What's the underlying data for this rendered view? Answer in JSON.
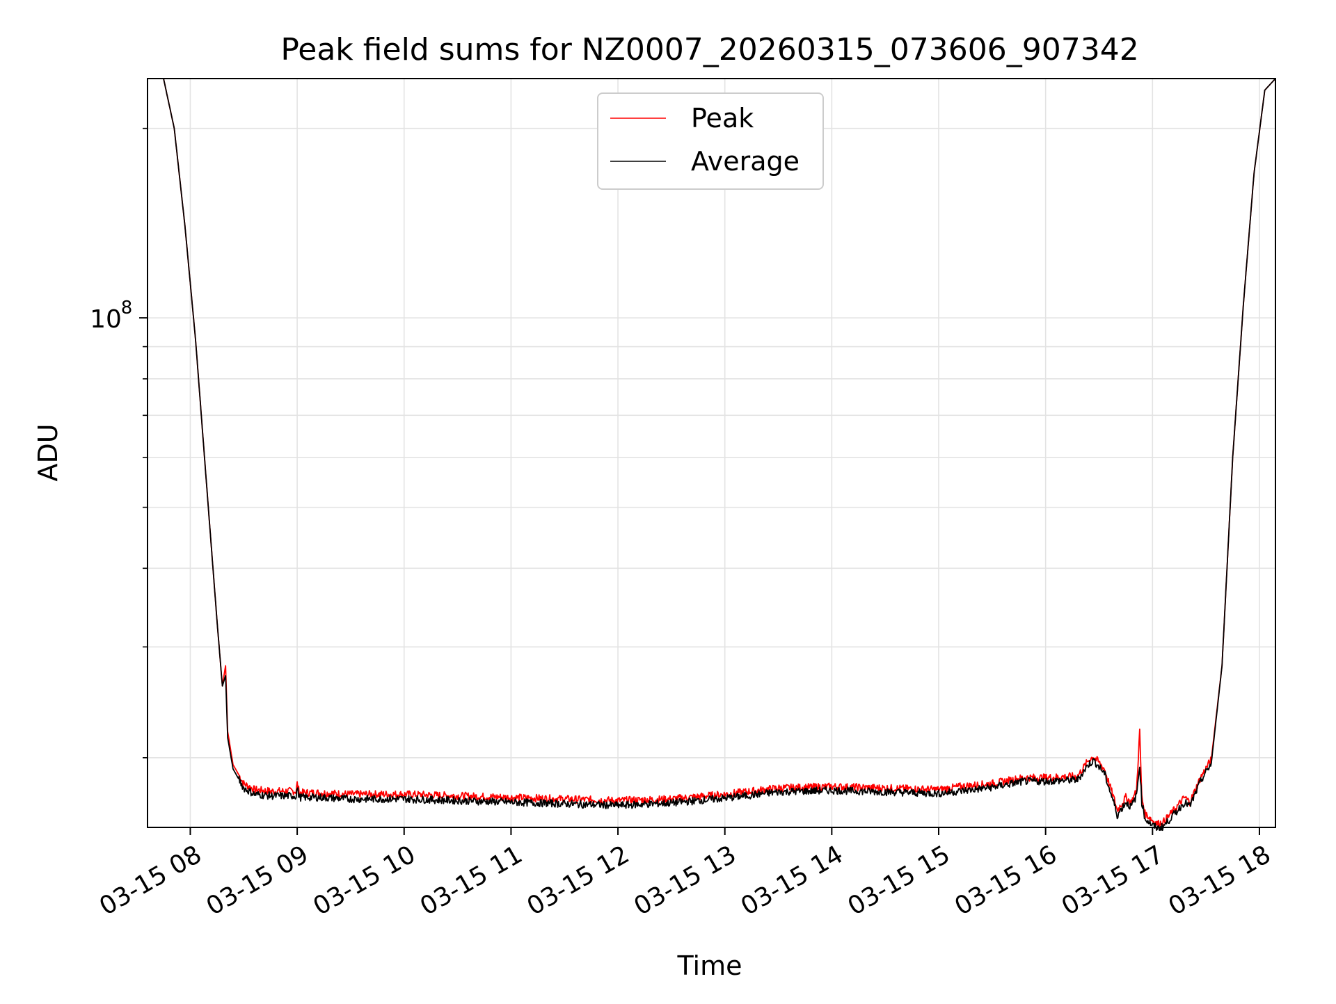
{
  "chart_data": {
    "type": "line",
    "title": "Peak field sums for NZ0007_20260315_073606_907342",
    "xlabel": "Time",
    "ylabel": "ADU",
    "y_scale": "log",
    "ylim": [
      15500000,
      240000000
    ],
    "xlim_hours": [
      7.6,
      18.15
    ],
    "x_ticks": [
      {
        "hour": 8,
        "label": "03-15 08"
      },
      {
        "hour": 9,
        "label": "03-15 09"
      },
      {
        "hour": 10,
        "label": "03-15 10"
      },
      {
        "hour": 11,
        "label": "03-15 11"
      },
      {
        "hour": 12,
        "label": "03-15 12"
      },
      {
        "hour": 13,
        "label": "03-15 13"
      },
      {
        "hour": 14,
        "label": "03-15 14"
      },
      {
        "hour": 15,
        "label": "03-15 15"
      },
      {
        "hour": 16,
        "label": "03-15 16"
      },
      {
        "hour": 17,
        "label": "03-15 17"
      },
      {
        "hour": 18,
        "label": "03-15 18"
      }
    ],
    "y_major_ticks": [
      {
        "value": 100000000,
        "label_base": "10",
        "label_exp": "8"
      }
    ],
    "y_minor_ticks": [
      20000000,
      30000000,
      40000000,
      50000000,
      60000000,
      70000000,
      80000000,
      90000000,
      200000000
    ],
    "grid": true,
    "legend_position": "top-center",
    "series": [
      {
        "name": "Peak",
        "color": "#ff0000",
        "x_hours": [
          7.6,
          7.75,
          7.85,
          7.95,
          8.05,
          8.15,
          8.25,
          8.3,
          8.33,
          8.35,
          8.4,
          8.5,
          8.6,
          8.75,
          8.99,
          9.0,
          9.02,
          9.2,
          9.5,
          10.0,
          10.5,
          11.0,
          11.5,
          12.0,
          12.5,
          13.0,
          13.5,
          14.0,
          14.5,
          15.0,
          15.2,
          15.5,
          15.8,
          16.0,
          16.3,
          16.4,
          16.45,
          16.55,
          16.65,
          16.67,
          16.75,
          16.8,
          16.85,
          16.88,
          16.9,
          16.93,
          16.97,
          17.0,
          17.05,
          17.1,
          17.2,
          17.3,
          17.35,
          17.45,
          17.55,
          17.65,
          17.75,
          17.85,
          17.95,
          18.05,
          18.15
        ],
        "values": [
          240000000,
          240000000,
          200000000,
          140000000,
          92000000,
          55000000,
          33000000,
          26000000,
          28000000,
          22000000,
          19500000,
          18200000,
          17800000,
          17700000,
          17700000,
          18200000,
          17600000,
          17600000,
          17500000,
          17500000,
          17400000,
          17300000,
          17200000,
          17100000,
          17200000,
          17500000,
          17900000,
          18000000,
          17900000,
          17800000,
          18000000,
          18200000,
          18600000,
          18600000,
          18700000,
          19800000,
          20100000,
          19200000,
          17000000,
          16500000,
          17300000,
          17000000,
          17700000,
          22000000,
          17300000,
          16300000,
          16100000,
          15900000,
          15700000,
          15800000,
          16500000,
          17300000,
          17000000,
          18600000,
          19900000,
          28000000,
          60000000,
          105000000,
          170000000,
          230000000,
          240000000
        ]
      },
      {
        "name": "Average",
        "color": "#000000",
        "x_hours": [
          7.6,
          7.75,
          7.85,
          7.95,
          8.05,
          8.15,
          8.25,
          8.3,
          8.33,
          8.35,
          8.4,
          8.5,
          8.6,
          8.75,
          8.99,
          9.0,
          9.02,
          9.2,
          9.5,
          10.0,
          10.5,
          11.0,
          11.5,
          12.0,
          12.5,
          13.0,
          13.5,
          14.0,
          14.5,
          15.0,
          15.2,
          15.5,
          15.8,
          16.0,
          16.3,
          16.4,
          16.45,
          16.55,
          16.65,
          16.67,
          16.75,
          16.8,
          16.85,
          16.88,
          16.9,
          16.93,
          16.97,
          17.0,
          17.05,
          17.1,
          17.2,
          17.3,
          17.35,
          17.45,
          17.55,
          17.65,
          17.75,
          17.85,
          17.95,
          18.05,
          18.15
        ],
        "values": [
          240000000,
          240000000,
          200000000,
          140000000,
          92000000,
          55000000,
          33000000,
          26000000,
          27000000,
          21500000,
          19200000,
          17900000,
          17500000,
          17400000,
          17400000,
          17900000,
          17300000,
          17300000,
          17200000,
          17200000,
          17100000,
          17000000,
          16900000,
          16800000,
          16950000,
          17250000,
          17650000,
          17750000,
          17650000,
          17550000,
          17700000,
          17950000,
          18350000,
          18350000,
          18450000,
          19500000,
          19800000,
          18900000,
          16700000,
          16200000,
          17000000,
          16700000,
          17400000,
          19500000,
          17000000,
          16000000,
          15800000,
          15600000,
          15450000,
          15550000,
          16250000,
          17000000,
          16750000,
          18350000,
          19600000,
          28000000,
          60000000,
          105000000,
          170000000,
          230000000,
          240000000
        ]
      }
    ]
  }
}
